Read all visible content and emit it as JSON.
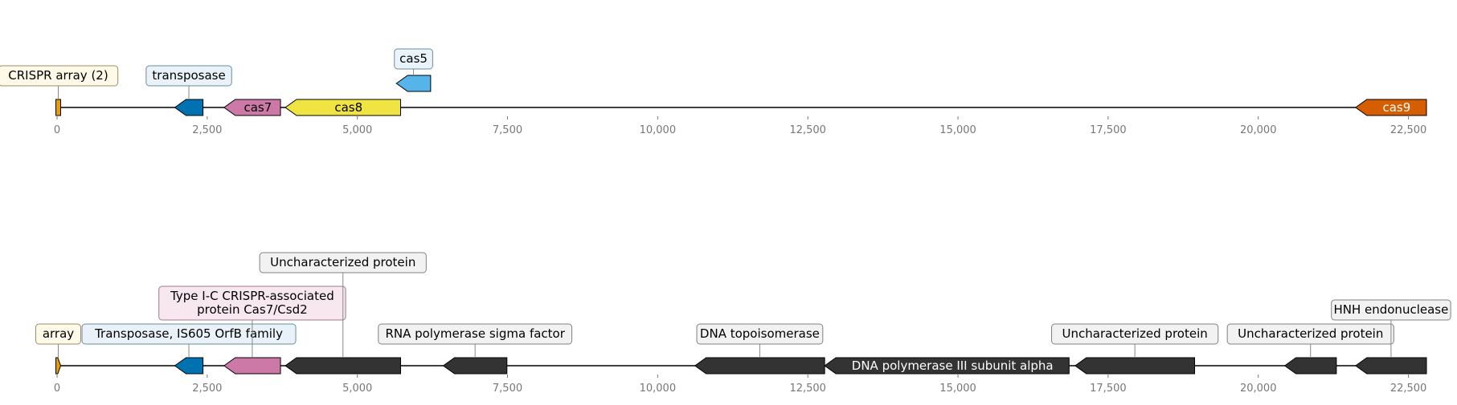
{
  "axis": {
    "min": 0,
    "max": 22800,
    "ticks": [
      {
        "value": 0,
        "label": "0"
      },
      {
        "value": 2500,
        "label": "2,500"
      },
      {
        "value": 5000,
        "label": "5,000"
      },
      {
        "value": 7500,
        "label": "7,500"
      },
      {
        "value": 10000,
        "label": "10,000"
      },
      {
        "value": 12500,
        "label": "12,500"
      },
      {
        "value": 15000,
        "label": "15,000"
      },
      {
        "value": 17500,
        "label": "17,500"
      },
      {
        "value": 20000,
        "label": "20,000"
      },
      {
        "value": 22500,
        "label": "22,500"
      }
    ]
  },
  "tracks": [
    {
      "id": "top",
      "features": [
        {
          "name": "crispr-array",
          "start": -20,
          "end": 60,
          "strand": 0,
          "color": "#E69F00",
          "text": "",
          "label": "CRISPR array (2)",
          "label_bg": "#FFF9E8",
          "label_border": "#A08C6A",
          "label_level": 0
        },
        {
          "name": "transposase",
          "start": 1960,
          "end": 2430,
          "strand": -1,
          "color": "#0072B2",
          "text": "",
          "label": "transposase",
          "label_bg": "#E8F2F8",
          "label_border": "#6A8C9F",
          "label_level": 0
        },
        {
          "name": "cas7",
          "start": 2780,
          "end": 3720,
          "strand": -1,
          "color": "#CC79A7",
          "text": "cas7",
          "text_color": "#000000",
          "label": "",
          "label_level": 0
        },
        {
          "name": "cas8",
          "start": 3800,
          "end": 5720,
          "strand": -1,
          "color": "#F0E442",
          "text": "cas8",
          "text_color": "#000000",
          "label": "",
          "label_level": 0
        },
        {
          "name": "cas5",
          "start": 5650,
          "end": 6220,
          "strand": -1,
          "color": "#56B4E9",
          "text": "",
          "label": "cas5",
          "label_bg": "#EAF5FB",
          "label_border": "#6A8C9F",
          "label_level": 1,
          "raised": true
        },
        {
          "name": "cas9",
          "start": 21620,
          "end": 22800,
          "strand": -1,
          "color": "#D55E00",
          "text": "cas9",
          "text_color": "#FFFFFF",
          "label": "",
          "label_level": 0
        }
      ]
    },
    {
      "id": "bottom",
      "features": [
        {
          "name": "array",
          "start": -20,
          "end": 60,
          "strand": 1,
          "color": "#E69F00",
          "text": "",
          "label": "array",
          "label_bg": "#FFF9E8",
          "label_border": "#A08C6A",
          "label_level": 0
        },
        {
          "name": "transposase-is605",
          "start": 1960,
          "end": 2430,
          "strand": -1,
          "color": "#0072B2",
          "text": "",
          "label": "Transposase, IS605 OrfB family",
          "label_bg": "#E8F2F8",
          "label_border": "#6A8C9F",
          "label_level": 0
        },
        {
          "name": "cas7-csd2",
          "start": 2780,
          "end": 3720,
          "strand": -1,
          "color": "#CC79A7",
          "text": "",
          "label": "Type I-C CRISPR-associated\nprotein Cas7/Csd2",
          "label_bg": "#F7E8EF",
          "label_border": "#9F7A8C",
          "label_level": 1
        },
        {
          "name": "uncharacterized-1",
          "start": 3800,
          "end": 5720,
          "strand": -1,
          "color": "#333333",
          "text": "",
          "label": "Uncharacterized protein",
          "label_bg": "#F2F2F2",
          "label_border": "#808080",
          "label_level": 2
        },
        {
          "name": "rna-polymerase-sigma",
          "start": 6430,
          "end": 7490,
          "strand": -1,
          "color": "#333333",
          "text": "",
          "label": "RNA polymerase sigma factor",
          "label_bg": "#F2F2F2",
          "label_border": "#808080",
          "label_level": 0
        },
        {
          "name": "dna-topoisomerase",
          "start": 10620,
          "end": 12780,
          "strand": -1,
          "color": "#333333",
          "text": "",
          "label": "DNA topoisomerase",
          "label_bg": "#F2F2F2",
          "label_border": "#808080",
          "label_level": 0
        },
        {
          "name": "dna-polymerase-iii",
          "start": 12780,
          "end": 16850,
          "strand": -1,
          "color": "#333333",
          "text": "DNA polymerase III subunit alpha",
          "text_color": "#FFFFFF",
          "label": "",
          "label_level": 0
        },
        {
          "name": "uncharacterized-2",
          "start": 16950,
          "end": 18940,
          "strand": -1,
          "color": "#333333",
          "text": "",
          "label": "Uncharacterized protein",
          "label_bg": "#F2F2F2",
          "label_border": "#808080",
          "label_level": 0
        },
        {
          "name": "uncharacterized-3",
          "start": 20440,
          "end": 21300,
          "strand": -1,
          "color": "#333333",
          "text": "",
          "label": "Uncharacterized protein",
          "label_bg": "#F2F2F2",
          "label_border": "#808080",
          "label_level": 0
        },
        {
          "name": "hnh-endonuclease",
          "start": 21620,
          "end": 22800,
          "strand": -1,
          "color": "#333333",
          "text": "",
          "label": "HNH endonuclease",
          "label_bg": "#F2F2F2",
          "label_border": "#808080",
          "label_level": 1
        }
      ]
    }
  ]
}
